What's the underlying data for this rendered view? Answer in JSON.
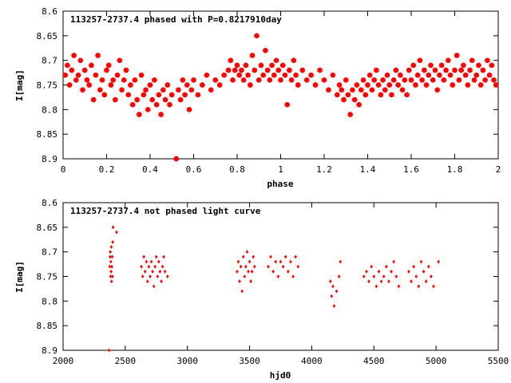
{
  "chart_data": [
    {
      "type": "scatter",
      "title": "113257-2737.4 phased with P=0.8217910day",
      "xlabel": "phase",
      "ylabel": "I[mag]",
      "xlim": [
        0,
        2
      ],
      "ylim": [
        8.9,
        8.6
      ],
      "y_inverted": true,
      "x_ticks": [
        "0",
        "0.2",
        "0.4",
        "0.6",
        "0.8",
        "1",
        "1.2",
        "1.4",
        "1.6",
        "1.8",
        "2"
      ],
      "y_ticks": [
        "8.6",
        "8.65",
        "8.7",
        "8.75",
        "8.8",
        "8.85",
        "8.9"
      ],
      "marker": "filled-octagon",
      "color": "#ff0000",
      "points": [
        [
          0.01,
          8.73
        ],
        [
          0.02,
          8.71
        ],
        [
          0.03,
          8.75
        ],
        [
          0.04,
          8.72
        ],
        [
          0.05,
          8.69
        ],
        [
          0.06,
          8.74
        ],
        [
          0.07,
          8.73
        ],
        [
          0.08,
          8.7
        ],
        [
          0.09,
          8.76
        ],
        [
          0.1,
          8.72
        ],
        [
          0.11,
          8.74
        ],
        [
          0.12,
          8.75
        ],
        [
          0.13,
          8.71
        ],
        [
          0.14,
          8.78
        ],
        [
          0.15,
          8.73
        ],
        [
          0.16,
          8.69
        ],
        [
          0.17,
          8.76
        ],
        [
          0.18,
          8.74
        ],
        [
          0.19,
          8.77
        ],
        [
          0.2,
          8.72
        ],
        [
          0.21,
          8.71
        ],
        [
          0.22,
          8.75
        ],
        [
          0.23,
          8.74
        ],
        [
          0.24,
          8.78
        ],
        [
          0.25,
          8.73
        ],
        [
          0.26,
          8.7
        ],
        [
          0.27,
          8.76
        ],
        [
          0.28,
          8.74
        ],
        [
          0.29,
          8.72
        ],
        [
          0.3,
          8.77
        ],
        [
          0.31,
          8.75
        ],
        [
          0.32,
          8.79
        ],
        [
          0.33,
          8.74
        ],
        [
          0.34,
          8.78
        ],
        [
          0.35,
          8.81
        ],
        [
          0.36,
          8.73
        ],
        [
          0.37,
          8.77
        ],
        [
          0.38,
          8.76
        ],
        [
          0.39,
          8.8
        ],
        [
          0.4,
          8.75
        ],
        [
          0.41,
          8.78
        ],
        [
          0.42,
          8.74
        ],
        [
          0.43,
          8.79
        ],
        [
          0.44,
          8.77
        ],
        [
          0.45,
          8.81
        ],
        [
          0.46,
          8.76
        ],
        [
          0.47,
          8.78
        ],
        [
          0.48,
          8.75
        ],
        [
          0.49,
          8.79
        ],
        [
          0.5,
          8.77
        ],
        [
          0.52,
          8.9
        ],
        [
          0.53,
          8.76
        ],
        [
          0.54,
          8.78
        ],
        [
          0.55,
          8.74
        ],
        [
          0.56,
          8.77
        ],
        [
          0.57,
          8.75
        ],
        [
          0.58,
          8.8
        ],
        [
          0.59,
          8.76
        ],
        [
          0.6,
          8.74
        ],
        [
          0.62,
          8.77
        ],
        [
          0.64,
          8.75
        ],
        [
          0.66,
          8.73
        ],
        [
          0.68,
          8.76
        ],
        [
          0.7,
          8.74
        ],
        [
          0.72,
          8.75
        ],
        [
          0.74,
          8.73
        ],
        [
          0.76,
          8.72
        ],
        [
          0.77,
          8.7
        ],
        [
          0.78,
          8.74
        ],
        [
          0.79,
          8.72
        ],
        [
          0.8,
          8.71
        ],
        [
          0.81,
          8.73
        ],
        [
          0.82,
          8.72
        ],
        [
          0.83,
          8.74
        ],
        [
          0.84,
          8.71
        ],
        [
          0.85,
          8.73
        ],
        [
          0.86,
          8.75
        ],
        [
          0.87,
          8.69
        ],
        [
          0.88,
          8.72
        ],
        [
          0.89,
          8.65
        ],
        [
          0.9,
          8.74
        ],
        [
          0.91,
          8.71
        ],
        [
          0.92,
          8.73
        ],
        [
          0.93,
          8.68
        ],
        [
          0.94,
          8.72
        ],
        [
          0.95,
          8.74
        ],
        [
          0.96,
          8.71
        ],
        [
          0.97,
          8.73
        ],
        [
          0.98,
          8.7
        ],
        [
          0.99,
          8.72
        ],
        [
          1.0,
          8.74
        ],
        [
          1.01,
          8.71
        ],
        [
          1.02,
          8.73
        ],
        [
          1.03,
          8.79
        ],
        [
          1.04,
          8.72
        ],
        [
          1.05,
          8.74
        ],
        [
          1.06,
          8.7
        ],
        [
          1.07,
          8.73
        ],
        [
          1.08,
          8.75
        ],
        [
          1.1,
          8.72
        ],
        [
          1.12,
          8.74
        ],
        [
          1.14,
          8.73
        ],
        [
          1.16,
          8.75
        ],
        [
          1.18,
          8.72
        ],
        [
          1.2,
          8.74
        ],
        [
          1.22,
          8.76
        ],
        [
          1.24,
          8.73
        ],
        [
          1.26,
          8.77
        ],
        [
          1.27,
          8.75
        ],
        [
          1.28,
          8.76
        ],
        [
          1.29,
          8.78
        ],
        [
          1.3,
          8.74
        ],
        [
          1.31,
          8.77
        ],
        [
          1.32,
          8.81
        ],
        [
          1.33,
          8.76
        ],
        [
          1.34,
          8.78
        ],
        [
          1.35,
          8.75
        ],
        [
          1.36,
          8.79
        ],
        [
          1.37,
          8.76
        ],
        [
          1.38,
          8.74
        ],
        [
          1.39,
          8.77
        ],
        [
          1.4,
          8.75
        ],
        [
          1.41,
          8.73
        ],
        [
          1.42,
          8.76
        ],
        [
          1.43,
          8.74
        ],
        [
          1.44,
          8.72
        ],
        [
          1.45,
          8.75
        ],
        [
          1.46,
          8.77
        ],
        [
          1.47,
          8.74
        ],
        [
          1.48,
          8.76
        ],
        [
          1.49,
          8.73
        ],
        [
          1.5,
          8.75
        ],
        [
          1.51,
          8.77
        ],
        [
          1.52,
          8.74
        ],
        [
          1.53,
          8.72
        ],
        [
          1.54,
          8.75
        ],
        [
          1.55,
          8.73
        ],
        [
          1.56,
          8.76
        ],
        [
          1.57,
          8.74
        ],
        [
          1.58,
          8.77
        ],
        [
          1.59,
          8.72
        ],
        [
          1.6,
          8.74
        ],
        [
          1.61,
          8.71
        ],
        [
          1.62,
          8.75
        ],
        [
          1.63,
          8.73
        ],
        [
          1.64,
          8.7
        ],
        [
          1.65,
          8.74
        ],
        [
          1.66,
          8.72
        ],
        [
          1.67,
          8.75
        ],
        [
          1.68,
          8.73
        ],
        [
          1.69,
          8.71
        ],
        [
          1.7,
          8.74
        ],
        [
          1.71,
          8.72
        ],
        [
          1.72,
          8.76
        ],
        [
          1.73,
          8.73
        ],
        [
          1.74,
          8.71
        ],
        [
          1.75,
          8.74
        ],
        [
          1.76,
          8.72
        ],
        [
          1.77,
          8.7
        ],
        [
          1.78,
          8.73
        ],
        [
          1.79,
          8.75
        ],
        [
          1.8,
          8.72
        ],
        [
          1.81,
          8.69
        ],
        [
          1.82,
          8.74
        ],
        [
          1.83,
          8.72
        ],
        [
          1.84,
          8.71
        ],
        [
          1.85,
          8.73
        ],
        [
          1.86,
          8.75
        ],
        [
          1.87,
          8.72
        ],
        [
          1.88,
          8.7
        ],
        [
          1.89,
          8.74
        ],
        [
          1.9,
          8.73
        ],
        [
          1.91,
          8.71
        ],
        [
          1.92,
          8.75
        ],
        [
          1.93,
          8.72
        ],
        [
          1.94,
          8.74
        ],
        [
          1.95,
          8.7
        ],
        [
          1.96,
          8.73
        ],
        [
          1.97,
          8.71
        ],
        [
          1.98,
          8.74
        ],
        [
          1.99,
          8.75
        ]
      ]
    },
    {
      "type": "scatter",
      "title": "113257-2737.4 not phased light curve",
      "xlabel": "hjd0",
      "ylabel": "I[mag]",
      "xlim": [
        2000,
        5500
      ],
      "ylim": [
        8.9,
        8.6
      ],
      "y_inverted": true,
      "x_ticks": [
        "2000",
        "2500",
        "3000",
        "3500",
        "4000",
        "4500",
        "5000",
        "5500"
      ],
      "y_ticks": [
        "8.6",
        "8.65",
        "8.7",
        "8.75",
        "8.8",
        "8.85",
        "8.9"
      ],
      "marker": "small-diamond",
      "color": "#ff0000",
      "points": [
        [
          2370,
          8.9
        ],
        [
          2375,
          8.73
        ],
        [
          2378,
          8.71
        ],
        [
          2380,
          8.7
        ],
        [
          2382,
          8.75
        ],
        [
          2384,
          8.72
        ],
        [
          2386,
          8.74
        ],
        [
          2388,
          8.69
        ],
        [
          2390,
          8.76
        ],
        [
          2392,
          8.73
        ],
        [
          2395,
          8.71
        ],
        [
          2398,
          8.75
        ],
        [
          2400,
          8.68
        ],
        [
          2402,
          8.65
        ],
        [
          2430,
          8.66
        ],
        [
          2630,
          8.73
        ],
        [
          2640,
          8.75
        ],
        [
          2650,
          8.71
        ],
        [
          2660,
          8.74
        ],
        [
          2670,
          8.72
        ],
        [
          2680,
          8.76
        ],
        [
          2690,
          8.73
        ],
        [
          2700,
          8.75
        ],
        [
          2710,
          8.72
        ],
        [
          2720,
          8.74
        ],
        [
          2730,
          8.77
        ],
        [
          2740,
          8.73
        ],
        [
          2750,
          8.71
        ],
        [
          2760,
          8.75
        ],
        [
          2770,
          8.72
        ],
        [
          2780,
          8.74
        ],
        [
          2790,
          8.76
        ],
        [
          2800,
          8.73
        ],
        [
          2810,
          8.71
        ],
        [
          2820,
          8.74
        ],
        [
          2840,
          8.75
        ],
        [
          3400,
          8.74
        ],
        [
          3410,
          8.72
        ],
        [
          3420,
          8.76
        ],
        [
          3430,
          8.73
        ],
        [
          3440,
          8.78
        ],
        [
          3450,
          8.71
        ],
        [
          3460,
          8.75
        ],
        [
          3470,
          8.73
        ],
        [
          3480,
          8.7
        ],
        [
          3490,
          8.74
        ],
        [
          3500,
          8.72
        ],
        [
          3510,
          8.76
        ],
        [
          3520,
          8.74
        ],
        [
          3530,
          8.71
        ],
        [
          3540,
          8.73
        ],
        [
          3650,
          8.73
        ],
        [
          3670,
          8.71
        ],
        [
          3690,
          8.74
        ],
        [
          3710,
          8.72
        ],
        [
          3730,
          8.75
        ],
        [
          3750,
          8.72
        ],
        [
          3770,
          8.73
        ],
        [
          3790,
          8.71
        ],
        [
          3810,
          8.74
        ],
        [
          3830,
          8.72
        ],
        [
          3850,
          8.75
        ],
        [
          3870,
          8.71
        ],
        [
          3890,
          8.73
        ],
        [
          4150,
          8.76
        ],
        [
          4160,
          8.79
        ],
        [
          4170,
          8.77
        ],
        [
          4180,
          8.81
        ],
        [
          4200,
          8.78
        ],
        [
          4220,
          8.75
        ],
        [
          4230,
          8.72
        ],
        [
          4420,
          8.75
        ],
        [
          4440,
          8.74
        ],
        [
          4460,
          8.76
        ],
        [
          4480,
          8.73
        ],
        [
          4500,
          8.75
        ],
        [
          4520,
          8.77
        ],
        [
          4540,
          8.74
        ],
        [
          4560,
          8.76
        ],
        [
          4580,
          8.75
        ],
        [
          4600,
          8.73
        ],
        [
          4620,
          8.76
        ],
        [
          4640,
          8.74
        ],
        [
          4660,
          8.72
        ],
        [
          4680,
          8.75
        ],
        [
          4700,
          8.77
        ],
        [
          4780,
          8.74
        ],
        [
          4800,
          8.76
        ],
        [
          4820,
          8.73
        ],
        [
          4840,
          8.75
        ],
        [
          4860,
          8.77
        ],
        [
          4880,
          8.72
        ],
        [
          4900,
          8.74
        ],
        [
          4920,
          8.76
        ],
        [
          4940,
          8.73
        ],
        [
          4960,
          8.75
        ],
        [
          4980,
          8.77
        ],
        [
          5020,
          8.72
        ]
      ]
    }
  ]
}
